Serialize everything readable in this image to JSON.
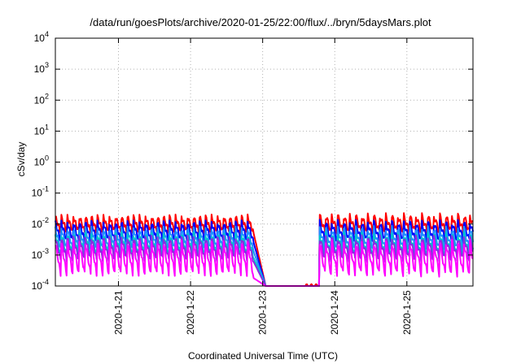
{
  "chart_data": {
    "type": "line",
    "title": "/data/run/goesPlots/archive/2020-01-25/22:00/flux/../bryn/5daysMars.plot",
    "xlabel": "Coordinated Universal Time (UTC)",
    "ylabel": "cSv/day",
    "yscale": "log",
    "ylim": [
      0.0001,
      10000
    ],
    "y_tick_labels": [
      {
        "base": "10",
        "exp": "-4"
      },
      {
        "base": "10",
        "exp": "-3"
      },
      {
        "base": "10",
        "exp": "-2"
      },
      {
        "base": "10",
        "exp": "-1"
      },
      {
        "base": "10",
        "exp": "0"
      },
      {
        "base": "10",
        "exp": "1"
      },
      {
        "base": "10",
        "exp": "2"
      },
      {
        "base": "10",
        "exp": "3"
      },
      {
        "base": "10",
        "exp": "4"
      }
    ],
    "x_tick_labels": [
      "2020-1-21",
      "2020-1-22",
      "2020-1-23",
      "2020-1-24",
      "2020-1-25"
    ],
    "x_range_days": [
      "2020-01-20 03:00",
      "2020-01-25 22:00"
    ],
    "grid": true,
    "legend": "none",
    "pattern": {
      "description": "sawtooth: abrupt rise, decay over ~2h, repeating",
      "period_hours": 2.0,
      "gap_start": "2020-01-22 21:00",
      "gap_end": "2020-01-23 19:00",
      "recover_start": "2020-01-23 14:00",
      "recover_level_red": 0.0001
    },
    "series": [
      {
        "color": "#ff0000",
        "peak": 0.017,
        "trough": 0.005,
        "late_peak": 0.018
      },
      {
        "color": "#0000ff",
        "peak": 0.011,
        "trough": 0.0025,
        "late_peak": 0.011
      },
      {
        "color": "#1e90ff",
        "peak": 0.007,
        "trough": 0.0013,
        "late_peak": 0.007
      },
      {
        "color": "#00c8c8",
        "peak": 0.0045,
        "trough": 0.0008,
        "late_peak": 0.0045
      },
      {
        "color": "#8a2be2",
        "peak": 0.0035,
        "trough": 0.0006,
        "late_peak": 0.0035
      },
      {
        "color": "#ff00ff",
        "peak": 0.0025,
        "trough": 0.00018,
        "late_peak": 0.0025
      }
    ]
  }
}
